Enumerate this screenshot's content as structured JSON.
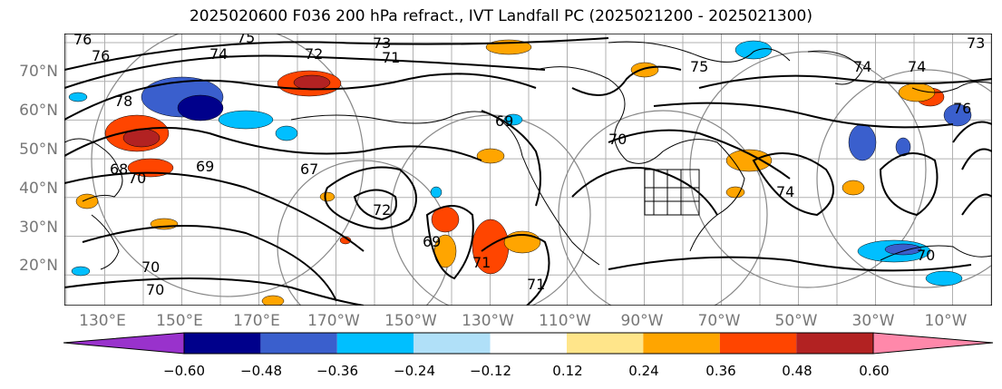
{
  "title": "2025020600 F036 200 hPa refract., IVT Landfall PC (2025021200 - 2025021300)",
  "lat_labels": [
    "70°N",
    "60°N",
    "50°N",
    "40°N",
    "30°N",
    "20°N"
  ],
  "lon_labels": [
    "130°E",
    "150°E",
    "170°E",
    "170°W",
    "150°W",
    "130°W",
    "110°W",
    "90°W",
    "70°W",
    "50°W",
    "30°W",
    "10°W"
  ],
  "contour_labels": [
    "76",
    "75",
    "73",
    "74",
    "72",
    "71",
    "76",
    "78",
    "69",
    "70",
    "68",
    "67",
    "70",
    "69",
    "72",
    "69",
    "71",
    "71",
    "70",
    "70",
    "74",
    "74",
    "75",
    "74",
    "73",
    "76",
    "70"
  ],
  "colorbar": {
    "labels": [
      "−0.60",
      "−0.48",
      "−0.36",
      "−0.24",
      "−0.12",
      "0.12",
      "0.24",
      "0.36",
      "0.48",
      "0.60"
    ],
    "colors": [
      "#9932cc",
      "#00008b",
      "#3a5fcd",
      "#00bfff",
      "#b0e0f8",
      "#ffffff",
      "#ffe58a",
      "#ffa500",
      "#ff4500",
      "#b22222",
      "#ff88aa"
    ]
  }
}
